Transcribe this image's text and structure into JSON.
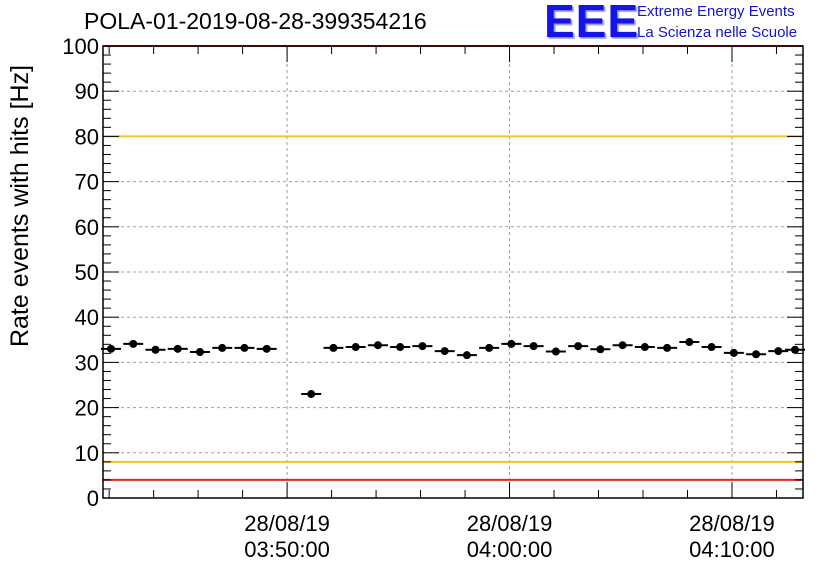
{
  "header": {
    "title": "POLA-01-2019-08-28-399354216",
    "logo_mark": "EEE",
    "logo_line1": "Extreme Energy Events",
    "logo_line2": "La Scienza nelle Scuole"
  },
  "chart_data": {
    "type": "scatter",
    "title": "POLA-01-2019-08-28-399354216",
    "xlabel": "",
    "ylabel": "Rate events with hits [Hz]",
    "ylim": [
      0,
      100
    ],
    "xlim": [
      "28/08/19 03:42:05",
      "28/08/19 04:12:50"
    ],
    "grid": true,
    "y_ticks": [
      0,
      10,
      20,
      30,
      40,
      50,
      60,
      70,
      80,
      90,
      100
    ],
    "x_ticks": [
      {
        "x": "28/08/19 03:50:00",
        "date": "28/08/19",
        "time": "03:50:00"
      },
      {
        "x": "28/08/19 04:00:00",
        "date": "28/08/19",
        "time": "04:00:00"
      },
      {
        "x": "28/08/19 04:10:00",
        "date": "28/08/19",
        "time": "04:10:00"
      }
    ],
    "reference_lines": [
      {
        "y": 100,
        "color": "#e8241e"
      },
      {
        "y": 80,
        "color": "#f0c81e"
      },
      {
        "y": 8,
        "color": "#f0c81e"
      },
      {
        "y": 4,
        "color": "#e8241e"
      }
    ],
    "points": [
      {
        "x": "28/08/19 03:42:05",
        "y": 33.0
      },
      {
        "x": "28/08/19 03:43:05",
        "y": 34.1
      },
      {
        "x": "28/08/19 03:44:05",
        "y": 32.8
      },
      {
        "x": "28/08/19 03:45:05",
        "y": 33.0
      },
      {
        "x": "28/08/19 03:46:05",
        "y": 32.3
      },
      {
        "x": "28/08/19 03:47:05",
        "y": 33.2
      },
      {
        "x": "28/08/19 03:48:05",
        "y": 33.2
      },
      {
        "x": "28/08/19 03:49:05",
        "y": 33.0
      },
      {
        "x": "28/08/19 03:51:05",
        "y": 23.0
      },
      {
        "x": "28/08/19 03:52:05",
        "y": 33.2
      },
      {
        "x": "28/08/19 03:53:05",
        "y": 33.4
      },
      {
        "x": "28/08/19 03:54:05",
        "y": 33.8
      },
      {
        "x": "28/08/19 03:55:05",
        "y": 33.4
      },
      {
        "x": "28/08/19 03:56:05",
        "y": 33.6
      },
      {
        "x": "28/08/19 03:57:05",
        "y": 32.5
      },
      {
        "x": "28/08/19 03:58:05",
        "y": 31.6
      },
      {
        "x": "28/08/19 03:59:05",
        "y": 33.2
      },
      {
        "x": "28/08/19 04:00:05",
        "y": 34.1
      },
      {
        "x": "28/08/19 04:01:05",
        "y": 33.6
      },
      {
        "x": "28/08/19 04:02:05",
        "y": 32.4
      },
      {
        "x": "28/08/19 04:03:05",
        "y": 33.6
      },
      {
        "x": "28/08/19 04:04:05",
        "y": 32.9
      },
      {
        "x": "28/08/19 04:05:05",
        "y": 33.8
      },
      {
        "x": "28/08/19 04:06:05",
        "y": 33.4
      },
      {
        "x": "28/08/19 04:07:05",
        "y": 33.2
      },
      {
        "x": "28/08/19 04:08:05",
        "y": 34.5
      },
      {
        "x": "28/08/19 04:09:05",
        "y": 33.4
      },
      {
        "x": "28/08/19 04:10:05",
        "y": 32.1
      },
      {
        "x": "28/08/19 04:11:05",
        "y": 31.8
      },
      {
        "x": "28/08/19 04:12:05",
        "y": 32.5
      },
      {
        "x": "28/08/19 04:12:50",
        "y": 32.8
      }
    ],
    "colors": {
      "marker": "#000000",
      "grid": "#a0a0a0",
      "warning": "#f0c81e",
      "alarm": "#e8241e"
    }
  }
}
